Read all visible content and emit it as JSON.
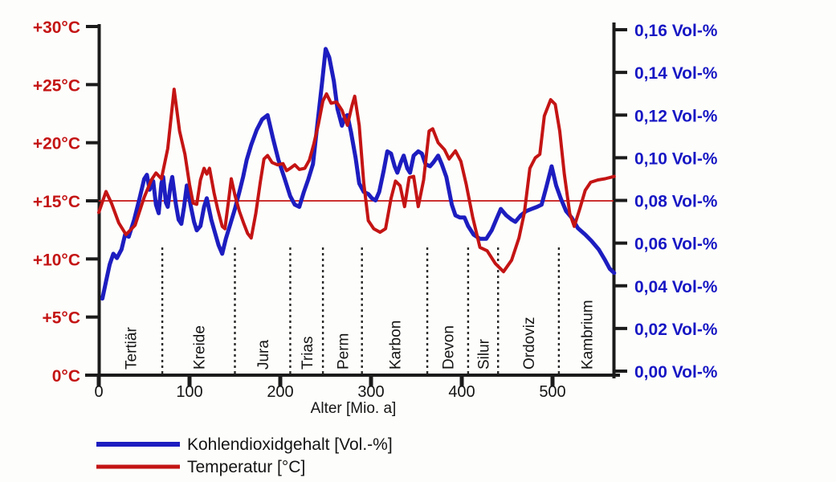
{
  "chart_data": {
    "type": "line",
    "title": "",
    "xlabel": "Alter [Mio. a]",
    "x_axis": {
      "ticks": [
        0,
        100,
        200,
        300,
        400,
        500
      ],
      "range": [
        0,
        568
      ],
      "unit": "Mio. a"
    },
    "left_axis": {
      "title": "Temperatur",
      "unit": "°C",
      "color": "#c41414",
      "tick_labels": [
        "0°C",
        "+5°C",
        "+10°C",
        "+15°C",
        "+20°C",
        "+25°C",
        "+30°C"
      ],
      "tick_values": [
        0,
        5,
        10,
        15,
        20,
        25,
        30
      ],
      "range": [
        0,
        30
      ]
    },
    "right_axis": {
      "title": "Kohlendioxidgehalt",
      "unit": "Vol-%",
      "color": "#1717c4",
      "tick_labels": [
        "0,00 Vol-%",
        "0,02 Vol-%",
        "0,04 Vol-%",
        "0,06 Vol-%",
        "0,08 Vol-%",
        "0,10 Vol-%",
        "0,12 Vol-%",
        "0,14 Vol-%",
        "0,16 Vol-%"
      ],
      "tick_values": [
        0,
        0.02,
        0.04,
        0.06,
        0.08,
        0.1,
        0.12,
        0.14,
        0.16
      ],
      "range": [
        0,
        0.16
      ]
    },
    "reference_line": {
      "axis": "left",
      "value": 15,
      "color": "#c41414"
    },
    "periods": [
      {
        "name": "Tertiär",
        "start": 0,
        "end": 70
      },
      {
        "name": "Kreide",
        "start": 70,
        "end": 150
      },
      {
        "name": "Jura",
        "start": 150,
        "end": 211
      },
      {
        "name": "Trias",
        "start": 211,
        "end": 247
      },
      {
        "name": "Perm",
        "start": 247,
        "end": 290
      },
      {
        "name": "Karbon",
        "start": 290,
        "end": 362
      },
      {
        "name": "Devon",
        "start": 362,
        "end": 407
      },
      {
        "name": "Silur",
        "start": 407,
        "end": 440
      },
      {
        "name": "Ordoviz",
        "start": 440,
        "end": 507
      },
      {
        "name": "Kambrium",
        "start": 507,
        "end": 568
      }
    ],
    "series": [
      {
        "name": "Kohlendioxidgehalt [Vol.-%]",
        "axis": "right",
        "color": "#1d1dc0",
        "stroke_width": 5,
        "points": [
          [
            4,
            0.034
          ],
          [
            8,
            0.042
          ],
          [
            12,
            0.05
          ],
          [
            16,
            0.055
          ],
          [
            20,
            0.053
          ],
          [
            25,
            0.057
          ],
          [
            29,
            0.064
          ],
          [
            33,
            0.063
          ],
          [
            39,
            0.071
          ],
          [
            45,
            0.081
          ],
          [
            50,
            0.09
          ],
          [
            53,
            0.092
          ],
          [
            56,
            0.085
          ],
          [
            60,
            0.089
          ],
          [
            63,
            0.078
          ],
          [
            66,
            0.074
          ],
          [
            69,
            0.088
          ],
          [
            71,
            0.091
          ],
          [
            74,
            0.079
          ],
          [
            76,
            0.077
          ],
          [
            79,
            0.087
          ],
          [
            81,
            0.091
          ],
          [
            85,
            0.078
          ],
          [
            88,
            0.071
          ],
          [
            91,
            0.069
          ],
          [
            94,
            0.077
          ],
          [
            97,
            0.087
          ],
          [
            102,
            0.076
          ],
          [
            105,
            0.07
          ],
          [
            108,
            0.066
          ],
          [
            112,
            0.068
          ],
          [
            116,
            0.077
          ],
          [
            119,
            0.081
          ],
          [
            124,
            0.071
          ],
          [
            128,
            0.065
          ],
          [
            132,
            0.059
          ],
          [
            136,
            0.055
          ],
          [
            140,
            0.062
          ],
          [
            145,
            0.069
          ],
          [
            150,
            0.076
          ],
          [
            155,
            0.084
          ],
          [
            159,
            0.091
          ],
          [
            163,
            0.099
          ],
          [
            168,
            0.106
          ],
          [
            174,
            0.113
          ],
          [
            180,
            0.118
          ],
          [
            186,
            0.12
          ],
          [
            192,
            0.109
          ],
          [
            198,
            0.099
          ],
          [
            205,
            0.09
          ],
          [
            211,
            0.082
          ],
          [
            216,
            0.078
          ],
          [
            221,
            0.077
          ],
          [
            226,
            0.084
          ],
          [
            231,
            0.09
          ],
          [
            236,
            0.097
          ],
          [
            241,
            0.116
          ],
          [
            246,
            0.135
          ],
          [
            250,
            0.151
          ],
          [
            254,
            0.147
          ],
          [
            259,
            0.136
          ],
          [
            263,
            0.123
          ],
          [
            268,
            0.115
          ],
          [
            271,
            0.119
          ],
          [
            274,
            0.12
          ],
          [
            278,
            0.112
          ],
          [
            283,
            0.1
          ],
          [
            287,
            0.088
          ],
          [
            292,
            0.084
          ],
          [
            297,
            0.083
          ],
          [
            301,
            0.081
          ],
          [
            305,
            0.08
          ],
          [
            309,
            0.084
          ],
          [
            314,
            0.094
          ],
          [
            318,
            0.103
          ],
          [
            322,
            0.102
          ],
          [
            326,
            0.096
          ],
          [
            329,
            0.093
          ],
          [
            333,
            0.098
          ],
          [
            336,
            0.101
          ],
          [
            340,
            0.095
          ],
          [
            343,
            0.093
          ],
          [
            347,
            0.101
          ],
          [
            352,
            0.103
          ],
          [
            356,
            0.102
          ],
          [
            360,
            0.097
          ],
          [
            365,
            0.096
          ],
          [
            369,
            0.098
          ],
          [
            374,
            0.101
          ],
          [
            378,
            0.097
          ],
          [
            383,
            0.091
          ],
          [
            389,
            0.078
          ],
          [
            393,
            0.073
          ],
          [
            398,
            0.072
          ],
          [
            403,
            0.072
          ],
          [
            407,
            0.068
          ],
          [
            413,
            0.064
          ],
          [
            420,
            0.062
          ],
          [
            427,
            0.062
          ],
          [
            433,
            0.066
          ],
          [
            438,
            0.071
          ],
          [
            443,
            0.076
          ],
          [
            449,
            0.073
          ],
          [
            455,
            0.071
          ],
          [
            459,
            0.07
          ],
          [
            465,
            0.073
          ],
          [
            471,
            0.075
          ],
          [
            477,
            0.076
          ],
          [
            483,
            0.077
          ],
          [
            488,
            0.078
          ],
          [
            493,
            0.086
          ],
          [
            499,
            0.096
          ],
          [
            504,
            0.087
          ],
          [
            509,
            0.081
          ],
          [
            515,
            0.075
          ],
          [
            521,
            0.072
          ],
          [
            528,
            0.067
          ],
          [
            536,
            0.064
          ],
          [
            543,
            0.061
          ],
          [
            551,
            0.057
          ],
          [
            558,
            0.052
          ],
          [
            563,
            0.048
          ],
          [
            568,
            0.046
          ]
        ]
      },
      {
        "name": "Temperatur [°C]",
        "axis": "left",
        "color": "#c41414",
        "stroke_width": 4,
        "points": [
          [
            0,
            14.0
          ],
          [
            8,
            15.8
          ],
          [
            14,
            14.8
          ],
          [
            22,
            13.1
          ],
          [
            30,
            12.1
          ],
          [
            40,
            12.9
          ],
          [
            50,
            15.3
          ],
          [
            58,
            16.8
          ],
          [
            63,
            17.4
          ],
          [
            69,
            16.9
          ],
          [
            76,
            19.5
          ],
          [
            83,
            24.6
          ],
          [
            89,
            21.0
          ],
          [
            95,
            19.0
          ],
          [
            100,
            16.4
          ],
          [
            104,
            14.8
          ],
          [
            108,
            14.7
          ],
          [
            112,
            16.8
          ],
          [
            116,
            17.8
          ],
          [
            119,
            17.3
          ],
          [
            122,
            17.8
          ],
          [
            127,
            15.7
          ],
          [
            131,
            14.3
          ],
          [
            136,
            12.8
          ],
          [
            139,
            12.6
          ],
          [
            143,
            15.0
          ],
          [
            146,
            16.9
          ],
          [
            150,
            15.5
          ],
          [
            155,
            14.1
          ],
          [
            160,
            13.0
          ],
          [
            164,
            12.2
          ],
          [
            168,
            11.8
          ],
          [
            173,
            13.9
          ],
          [
            178,
            16.6
          ],
          [
            182,
            18.6
          ],
          [
            186,
            18.9
          ],
          [
            191,
            18.3
          ],
          [
            197,
            18.1
          ],
          [
            203,
            18.2
          ],
          [
            207,
            17.6
          ],
          [
            211,
            17.8
          ],
          [
            216,
            18.1
          ],
          [
            221,
            17.7
          ],
          [
            227,
            17.8
          ],
          [
            232,
            18.5
          ],
          [
            237,
            19.9
          ],
          [
            242,
            21.6
          ],
          [
            247,
            23.6
          ],
          [
            251,
            24.2
          ],
          [
            256,
            23.4
          ],
          [
            262,
            23.5
          ],
          [
            268,
            22.8
          ],
          [
            274,
            21.5
          ],
          [
            279,
            23.2
          ],
          [
            282,
            24.0
          ],
          [
            287,
            21.5
          ],
          [
            292,
            16.5
          ],
          [
            297,
            13.3
          ],
          [
            303,
            12.6
          ],
          [
            310,
            12.3
          ],
          [
            316,
            12.6
          ],
          [
            322,
            15.2
          ],
          [
            327,
            16.7
          ],
          [
            332,
            16.3
          ],
          [
            337,
            14.5
          ],
          [
            342,
            17.0
          ],
          [
            347,
            17.1
          ],
          [
            352,
            14.5
          ],
          [
            358,
            16.8
          ],
          [
            364,
            21.0
          ],
          [
            368,
            21.2
          ],
          [
            374,
            20.0
          ],
          [
            381,
            19.4
          ],
          [
            386,
            18.6
          ],
          [
            393,
            19.3
          ],
          [
            399,
            18.4
          ],
          [
            405,
            16.4
          ],
          [
            412,
            13.6
          ],
          [
            420,
            11.0
          ],
          [
            428,
            10.7
          ],
          [
            437,
            9.6
          ],
          [
            446,
            8.9
          ],
          [
            455,
            9.9
          ],
          [
            463,
            11.8
          ],
          [
            469,
            14.0
          ],
          [
            475,
            17.8
          ],
          [
            481,
            18.7
          ],
          [
            486,
            19.0
          ],
          [
            491,
            22.3
          ],
          [
            498,
            23.7
          ],
          [
            503,
            23.3
          ],
          [
            508,
            21.0
          ],
          [
            513,
            17.3
          ],
          [
            519,
            13.9
          ],
          [
            524,
            12.8
          ],
          [
            530,
            14.3
          ],
          [
            536,
            15.9
          ],
          [
            542,
            16.6
          ],
          [
            550,
            16.8
          ],
          [
            558,
            16.9
          ],
          [
            568,
            17.1
          ]
        ]
      }
    ],
    "legend": {
      "position": "bottom-left",
      "entries": [
        "Kohlendioxidgehalt [Vol.-%]",
        "Temperatur [°C]"
      ]
    }
  }
}
